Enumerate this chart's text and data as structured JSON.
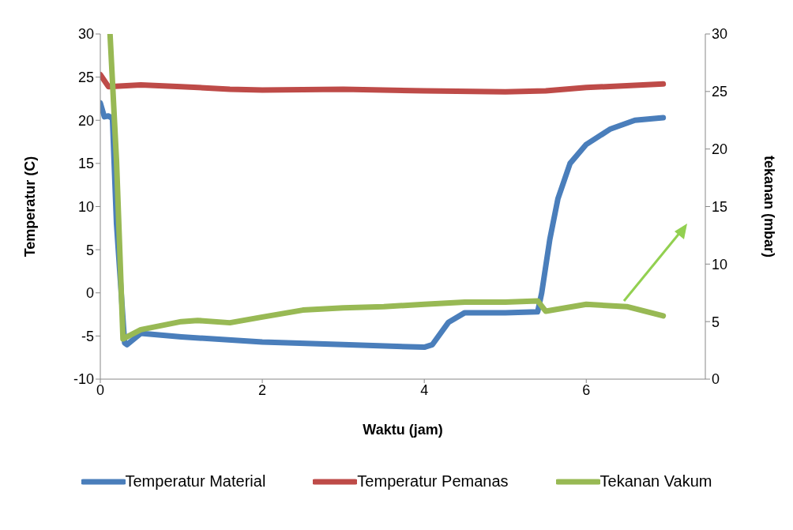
{
  "chart_data": {
    "type": "line",
    "xlabel": "Waktu (jam)",
    "ylabel": "Temperatur (C)",
    "y2label": "tekanan (mbar)",
    "xlim": [
      0,
      7.47
    ],
    "xticks": [
      0,
      2,
      4,
      6
    ],
    "ylim": [
      -10,
      30
    ],
    "yticks": [
      -10,
      -5,
      0,
      5,
      10,
      15,
      20,
      25,
      30
    ],
    "y2lim": [
      0,
      30
    ],
    "y2ticks": [
      0,
      5,
      10,
      15,
      20,
      25,
      30
    ],
    "grid": false,
    "legend": "bottom",
    "marker": "none",
    "line_style": "solid",
    "series": [
      {
        "name": "Temperatur Material",
        "color": "#4a7ebb",
        "x": [
          0,
          0.05,
          0.1,
          0.15,
          0.2,
          0.3,
          0.33,
          0.5,
          1,
          2,
          3,
          4,
          4.1,
          4.3,
          4.5,
          5,
          5.4,
          5.45,
          5.55,
          5.65,
          5.8,
          6,
          6.3,
          6.6,
          6.95
        ],
        "values": [
          22,
          20.4,
          20.5,
          20.2,
          8,
          -5.8,
          -6,
          -4.7,
          -5.1,
          -5.7,
          -6,
          -6.3,
          -6,
          -3.4,
          -2.3,
          -2.3,
          -2.2,
          0,
          6.2,
          10.9,
          15,
          17.2,
          19,
          20,
          20.3
        ]
      },
      {
        "name": "Temperatur Pemanas",
        "color": "#be4b48",
        "x": [
          0,
          0.1,
          0.5,
          1,
          1.6,
          2,
          3,
          4,
          5,
          5.5,
          6,
          6.5,
          6.95
        ],
        "values": [
          25.3,
          23.9,
          24.1,
          23.9,
          23.6,
          23.5,
          23.6,
          23.4,
          23.3,
          23.4,
          23.8,
          24,
          24.2
        ]
      },
      {
        "name": "Tekanan Vakum",
        "color": "#98b954",
        "axis": "y2",
        "x": [
          0.12,
          0.2,
          0.28,
          0.5,
          1,
          1.2,
          1.6,
          2,
          2.5,
          3,
          3.5,
          4,
          4.5,
          5,
          5.4,
          5.5,
          6,
          6.5,
          6.95
        ],
        "values": [
          30,
          19,
          3.5,
          4.3,
          5,
          5.1,
          4.9,
          5.4,
          6,
          6.2,
          6.3,
          6.5,
          6.7,
          6.7,
          6.8,
          5.9,
          6.5,
          6.3,
          5.5
        ]
      }
    ]
  }
}
